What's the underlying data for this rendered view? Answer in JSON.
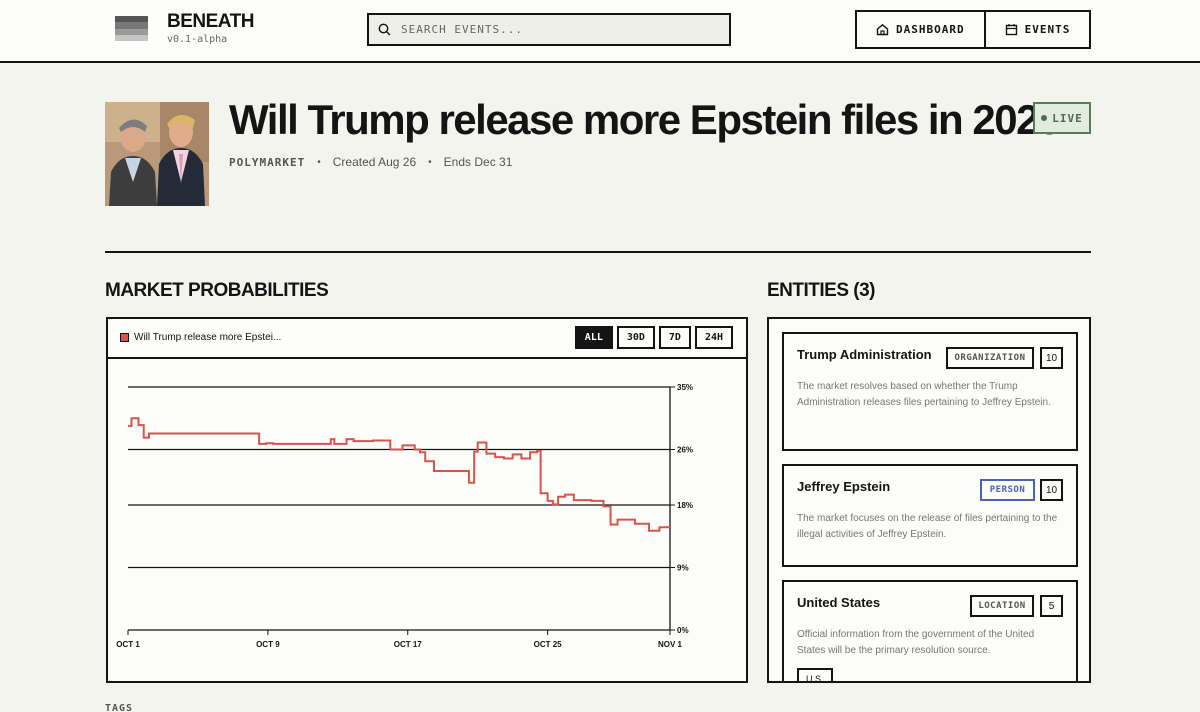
{
  "header": {
    "brand_name": "BENEATH",
    "version": "v0.1-alpha",
    "search_placeholder": "SEARCH EVENTS...",
    "nav": [
      {
        "label": "DASHBOARD",
        "icon": "home-icon"
      },
      {
        "label": "EVENTS",
        "icon": "calendar-icon"
      }
    ]
  },
  "event": {
    "title": "Will Trump release more Epstein files in 2025?",
    "source": "POLYMARKET",
    "created": "Created Aug 26",
    "ends": "Ends Dec 31",
    "status": "LIVE"
  },
  "market": {
    "section_title": "MARKET PROBABILITIES",
    "legend_label": "Will Trump release more Epstei...",
    "ranges": [
      "ALL",
      "30D",
      "7D",
      "24H"
    ],
    "active_range": "ALL"
  },
  "chart_data": {
    "type": "line",
    "series": [
      {
        "name": "Will Trump release more Epstei...",
        "color": "#d9534f",
        "x": [
          1.0,
          1.2,
          1.6,
          1.9,
          2.2,
          2.7,
          8.5,
          8.9,
          9.3,
          12.6,
          12.8,
          13.5,
          13.9,
          15.0,
          16.0,
          16.2,
          16.7,
          17.4,
          17.7,
          18.0,
          18.5,
          19.5,
          20.5,
          20.8,
          21.0,
          21.5,
          22.0,
          22.5,
          23.0,
          23.5,
          24.0,
          24.4,
          24.6,
          25.0,
          25.3,
          25.6,
          26.0,
          26.5,
          27.5,
          28.2,
          28.6,
          29.0,
          30.0,
          30.8,
          31.4,
          32.0
        ],
        "y": [
          29.4,
          30.5,
          29.5,
          27.7,
          28.3,
          28.3,
          26.8,
          26.9,
          26.8,
          27.5,
          26.8,
          27.5,
          27.2,
          27.3,
          26.0,
          26.0,
          26.6,
          26.0,
          25.6,
          24.3,
          22.9,
          22.9,
          21.2,
          25.7,
          27.0,
          25.4,
          24.9,
          24.7,
          25.3,
          24.7,
          25.6,
          25.8,
          19.7,
          18.6,
          18.1,
          19.2,
          19.5,
          18.7,
          18.6,
          17.8,
          15.2,
          15.9,
          15.3,
          14.3,
          14.8,
          14.9
        ]
      }
    ],
    "x_tick_labels": [
      "OCT 1",
      "OCT 9",
      "OCT 17",
      "OCT 25",
      "NOV 1"
    ],
    "x_tick_values": [
      1,
      9,
      17,
      25,
      32
    ],
    "y_tick_labels": [
      "35%",
      "26%",
      "18%",
      "9%",
      "0%"
    ],
    "y_tick_values": [
      35,
      26,
      18,
      9,
      0
    ],
    "ylim": [
      0,
      35
    ],
    "xlim": [
      1,
      32
    ],
    "grid": true,
    "y_axis_side": "right"
  },
  "entities": {
    "section_title": "ENTITIES (3)",
    "items": [
      {
        "name": "Trump Administration",
        "type": "ORGANIZATION",
        "count": "10",
        "type_color": "#555555",
        "description": "The market resolves based on whether the Trump Administration releases files pertaining to Jeffrey Epstein."
      },
      {
        "name": "Jeffrey Epstein",
        "type": "PERSON",
        "count": "10",
        "type_color": "#4a63b8",
        "description": "The market focuses on the release of files pertaining to the illegal activities of Jeffrey Epstein."
      },
      {
        "name": "United States",
        "type": "LOCATION",
        "count": "5",
        "type_color": "#555555",
        "description": "Official information from the government of the United States will be the primary resolution source.",
        "tag": "U.S."
      }
    ]
  },
  "tags_label": "TAGS"
}
